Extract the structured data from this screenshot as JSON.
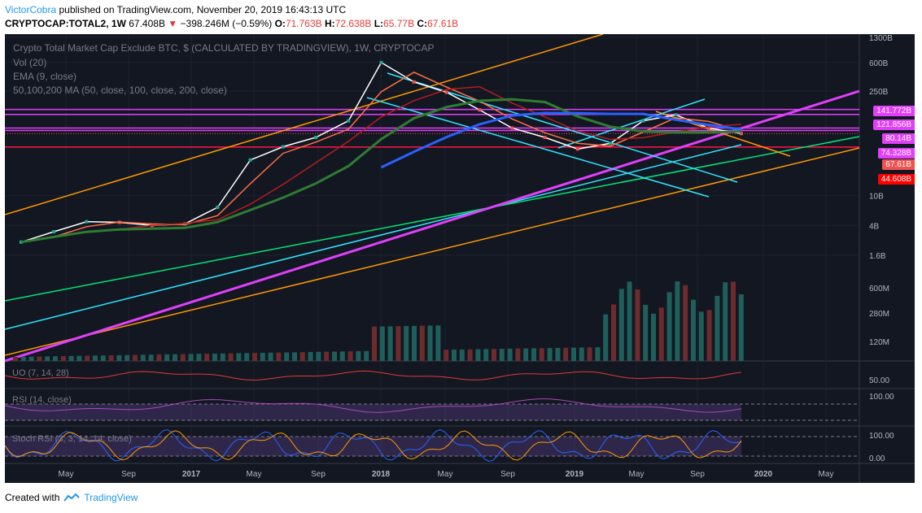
{
  "header": {
    "author": "VictorCobra",
    "published": " published on TradingView.com, November 20, 2019 16:43:13 UTC",
    "symbol": "CRYPTOCAP:TOTAL2, 1W",
    "price": " 67.408B ",
    "change": " −398.246M (−0.59%) ",
    "o_label": "O:",
    "o": "71.763B",
    "h_label": " H:",
    "h": "72.638B",
    "l_label": " L:",
    "l": "65.77B",
    "c_label": " C:",
    "c": "67.61B"
  },
  "legend": {
    "title": "Crypto Total Market Cap Exclude BTC, $ (CALCULATED BY TRADINGVIEW), 1W, CRYPTOCAP",
    "vol": "Vol (20)",
    "ema": "EMA (9, close)",
    "ma": "50,100,200 MA (50, close, 100, close, 200, close)"
  },
  "panes": {
    "uo": "UO (7, 14, 28)",
    "rsi": "RSI (14, close)",
    "stoch": "Stoch RSI (3, 3, 14, 14, close)"
  },
  "price_axis": [
    "1300B",
    "600B",
    "250B",
    "10B",
    "4B",
    "1.6B"
  ],
  "volume_axis": [
    "600M",
    "280M",
    "120M"
  ],
  "uo_axis": [
    "50.00"
  ],
  "rsi_axis": [
    "100.00"
  ],
  "stoch_axis": [
    "100.00",
    "0.00"
  ],
  "price_tags": [
    {
      "label": "141.772B",
      "color": "#e040fb"
    },
    {
      "label": "121.856B",
      "color": "#e040fb"
    },
    {
      "label": "80.14B",
      "color": "#e040fb"
    },
    {
      "label": "74.328B",
      "color": "#e040fb"
    },
    {
      "label": "67.61B",
      "color": "#ef5350"
    },
    {
      "label": "44.608B",
      "color": "#ff0000"
    }
  ],
  "time_axis": [
    "May",
    "Sep",
    "2017",
    "May",
    "Sep",
    "2018",
    "May",
    "Sep",
    "2019",
    "May",
    "Sep",
    "2020",
    "May"
  ],
  "footer": {
    "created": "Created with",
    "brand": "TradingView"
  },
  "chart_data": {
    "type": "line",
    "title": "Crypto Total Market Cap Exclude BTC, $ (CALCULATED BY TRADINGVIEW), 1W, CRYPTOCAP",
    "scale": "log",
    "x": [
      "2016-03",
      "2016-05",
      "2016-07",
      "2016-09",
      "2016-11",
      "2017-01",
      "2017-03",
      "2017-05",
      "2017-07",
      "2017-09",
      "2017-11",
      "2018-01",
      "2018-03",
      "2018-05",
      "2018-07",
      "2018-09",
      "2018-11",
      "2019-01",
      "2019-03",
      "2019-05",
      "2019-07",
      "2019-09",
      "2019-11"
    ],
    "series": [
      {
        "name": "TOTAL2",
        "values": [
          2.4,
          3.3,
          4.5,
          4.4,
          4.0,
          4.2,
          7,
          30,
          45,
          60,
          100,
          600,
          330,
          240,
          140,
          80,
          60,
          42,
          50,
          100,
          120,
          80,
          67.6
        ]
      }
    ],
    "horizontal_levels": [
      141.772,
      121.856,
      80.14,
      74.328,
      44.608
    ],
    "last_close": 67.61,
    "grid": true
  }
}
